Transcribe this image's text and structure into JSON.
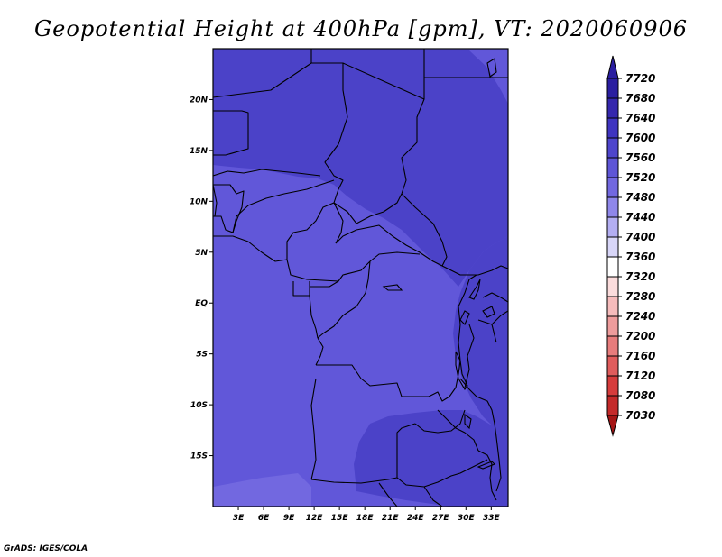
{
  "title": "Geopotential Height at 400hPa [gpm], VT: 2020060906",
  "credit": "GrADS: IGES/COLA",
  "map": {
    "lon_range": [
      0,
      35
    ],
    "lat_range": [
      -20,
      25
    ],
    "lat_ticks": [
      {
        "value": 20,
        "label": "20N"
      },
      {
        "value": 15,
        "label": "15N"
      },
      {
        "value": 10,
        "label": "10N"
      },
      {
        "value": 5,
        "label": "5N"
      },
      {
        "value": 0,
        "label": "EQ"
      },
      {
        "value": -5,
        "label": "5S"
      },
      {
        "value": -10,
        "label": "10S"
      },
      {
        "value": -15,
        "label": "15S"
      }
    ],
    "lon_ticks": [
      {
        "value": 3,
        "label": "3E"
      },
      {
        "value": 6,
        "label": "6E"
      },
      {
        "value": 9,
        "label": "9E"
      },
      {
        "value": 12,
        "label": "12E"
      },
      {
        "value": 15,
        "label": "15E"
      },
      {
        "value": 18,
        "label": "18E"
      },
      {
        "value": 21,
        "label": "21E"
      },
      {
        "value": 24,
        "label": "24E"
      },
      {
        "value": 27,
        "label": "27E"
      },
      {
        "value": 30,
        "label": "30E"
      },
      {
        "value": 33,
        "label": "33E"
      }
    ]
  },
  "colorbar": {
    "levels": [
      {
        "label": "7720",
        "color": "#2a1ea0"
      },
      {
        "label": "7680",
        "color": "#3527ad"
      },
      {
        "label": "7640",
        "color": "#3f34c0"
      },
      {
        "label": "7600",
        "color": "#4e45cc"
      },
      {
        "label": "7560",
        "color": "#5e55d6"
      },
      {
        "label": "7520",
        "color": "#7268e0"
      },
      {
        "label": "7480",
        "color": "#8f87ea"
      },
      {
        "label": "7440",
        "color": "#b3aef2"
      },
      {
        "label": "7400",
        "color": "#d8d6f8"
      },
      {
        "label": "7360",
        "color": "#ffffff"
      },
      {
        "label": "7320",
        "color": "#fbdcdc"
      },
      {
        "label": "7280",
        "color": "#f6bcbc"
      },
      {
        "label": "7240",
        "color": "#ee9c9c"
      },
      {
        "label": "7200",
        "color": "#e77c7c"
      },
      {
        "label": "7160",
        "color": "#e05c5c"
      },
      {
        "label": "7120",
        "color": "#d63c3c"
      },
      {
        "label": "7080",
        "color": "#c42a2a"
      },
      {
        "label": "7030",
        "color": "#b01e1e"
      }
    ],
    "top_color": "#2a1ea0",
    "bottom_color": "#a51515"
  },
  "shading": {
    "h7600": "#4b42c8",
    "h7560": "#6157d9",
    "h7520": "#7268e0"
  }
}
